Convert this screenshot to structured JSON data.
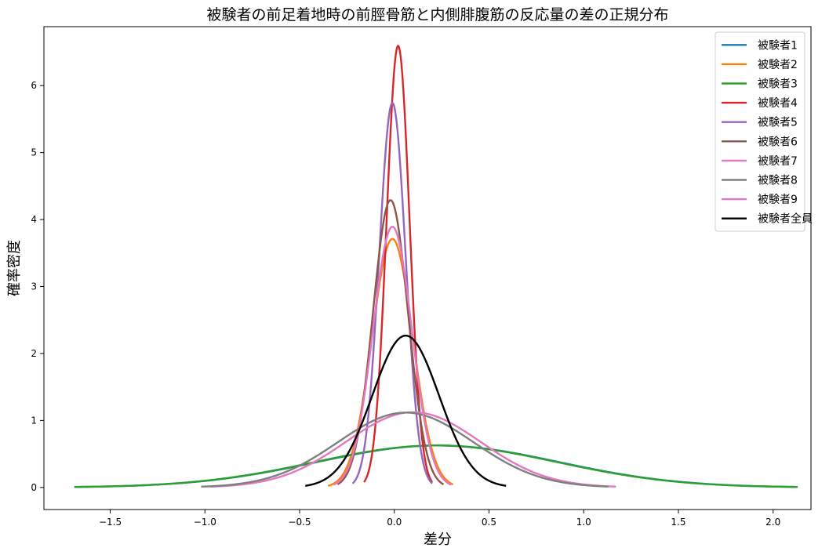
{
  "chart_data": {
    "type": "line",
    "title": "被験者の前足着地時の前脛骨筋と内側腓腹筋の反応量の差の正規分布",
    "xlabel": "差分",
    "ylabel": "確率密度",
    "xlim": [
      -1.85,
      2.2
    ],
    "ylim": [
      -0.33,
      6.88
    ],
    "xticks": [
      -1.5,
      -1.0,
      -0.5,
      0.0,
      0.5,
      1.0,
      1.5,
      2.0
    ],
    "xtick_labels": [
      "−1.5",
      "−1.0",
      "−0.5",
      "0.0",
      "0.5",
      "1.0",
      "1.5",
      "2.0"
    ],
    "yticks": [
      0,
      1,
      2,
      3,
      4,
      5,
      6
    ],
    "ytick_labels": [
      "0",
      "1",
      "2",
      "3",
      "4",
      "5",
      "6"
    ],
    "grid": false,
    "legend_position": "top-right",
    "series": [
      {
        "name": "被験者1",
        "color": "#1f77b4",
        "mean": 0.23,
        "sd": 0.637,
        "x_range": [
          -1.68,
          2.12
        ]
      },
      {
        "name": "被験者2",
        "color": "#ff7f0e",
        "mean": -0.01,
        "sd": 0.1075,
        "x_range": [
          -0.35,
          0.31
        ]
      },
      {
        "name": "被験者3",
        "color": "#2ca02c",
        "mean": 0.22,
        "sd": 0.637,
        "x_range": [
          -1.69,
          2.13
        ]
      },
      {
        "name": "被験者4",
        "color": "#d62728",
        "mean": 0.02,
        "sd": 0.0605,
        "x_range": [
          -0.16,
          0.2
        ]
      },
      {
        "name": "被験者5",
        "color": "#9467bd",
        "mean": -0.01,
        "sd": 0.0695,
        "x_range": [
          -0.22,
          0.2
        ]
      },
      {
        "name": "被験者6",
        "color": "#8c564b",
        "mean": -0.02,
        "sd": 0.093,
        "x_range": [
          -0.3,
          0.26
        ]
      },
      {
        "name": "被験者7",
        "color": "#e377c2",
        "mean": 0.1,
        "sd": 0.355,
        "x_range": [
          -0.97,
          1.17
        ]
      },
      {
        "name": "被験者8",
        "color": "#7f7f7f",
        "mean": 0.06,
        "sd": 0.357,
        "x_range": [
          -1.02,
          1.13
        ]
      },
      {
        "name": "被験者9",
        "color": "#e377c2",
        "mean": -0.01,
        "sd": 0.1025,
        "x_range": [
          -0.32,
          0.3
        ]
      },
      {
        "name": "被験者全員",
        "color": "#000000",
        "mean": 0.06,
        "sd": 0.176,
        "x_range": [
          -0.47,
          0.59
        ]
      }
    ]
  }
}
